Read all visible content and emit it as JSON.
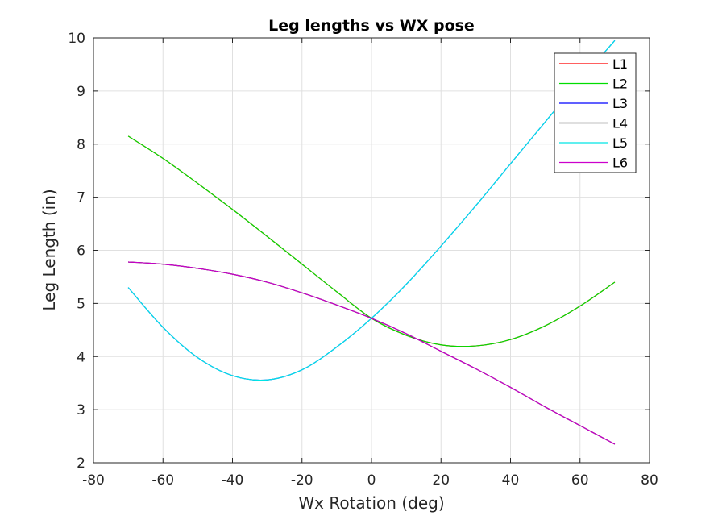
{
  "chart_data": {
    "type": "line",
    "title": "Leg lengths vs WX pose",
    "xlabel": "Wx Rotation (deg)",
    "ylabel": "Leg Length (in)",
    "xlim": [
      -80,
      80
    ],
    "ylim": [
      2,
      10
    ],
    "xticks": [
      "-80",
      "-60",
      "-40",
      "-20",
      "0",
      "20",
      "40",
      "60",
      "80"
    ],
    "yticks": [
      "2",
      "3",
      "4",
      "5",
      "6",
      "7",
      "8",
      "9",
      "10"
    ],
    "grid": true,
    "legend_position": "top-right",
    "x": [
      -70,
      -60,
      -50,
      -40,
      -30,
      -20,
      -10,
      0,
      10,
      20,
      30,
      40,
      50,
      60,
      70
    ],
    "series": [
      {
        "name": "L1",
        "color": "#ff0000",
        "values": [
          8.15,
          7.73,
          7.26,
          6.77,
          6.26,
          5.74,
          5.22,
          4.72,
          4.4,
          4.22,
          4.2,
          4.32,
          4.58,
          4.95,
          5.4
        ]
      },
      {
        "name": "L2",
        "color": "#00dd00",
        "values": [
          8.15,
          7.73,
          7.26,
          6.77,
          6.26,
          5.74,
          5.22,
          4.72,
          4.4,
          4.22,
          4.2,
          4.32,
          4.58,
          4.95,
          5.4
        ]
      },
      {
        "name": "L3",
        "color": "#0000ff",
        "values": [
          5.3,
          4.55,
          3.98,
          3.64,
          3.56,
          3.75,
          4.18,
          4.72,
          5.36,
          6.08,
          6.84,
          7.63,
          8.42,
          9.2,
          9.95
        ]
      },
      {
        "name": "L4",
        "color": "#000000",
        "values": [
          5.78,
          5.74,
          5.66,
          5.55,
          5.4,
          5.2,
          4.97,
          4.72,
          4.43,
          4.1,
          3.77,
          3.42,
          3.05,
          2.7,
          2.35
        ]
      },
      {
        "name": "L5",
        "color": "#00e5e5",
        "values": [
          5.3,
          4.55,
          3.98,
          3.64,
          3.56,
          3.75,
          4.18,
          4.72,
          5.36,
          6.08,
          6.84,
          7.63,
          8.42,
          9.2,
          9.95
        ]
      },
      {
        "name": "L6",
        "color": "#cc00cc",
        "values": [
          5.78,
          5.74,
          5.66,
          5.55,
          5.4,
          5.2,
          4.97,
          4.72,
          4.43,
          4.1,
          3.77,
          3.42,
          3.05,
          2.7,
          2.35
        ]
      }
    ]
  }
}
